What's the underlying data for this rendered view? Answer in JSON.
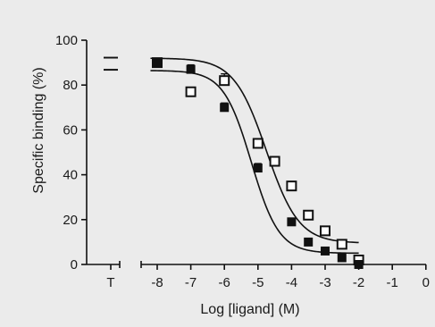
{
  "chart_data": {
    "type": "scatter",
    "title": "",
    "xlabel": "Log [ligand] (M)",
    "ylabel": "Specific binding (%)",
    "xlim": [
      -8.5,
      0
    ],
    "ylim": [
      0,
      100
    ],
    "x_ticks": [
      -8,
      -7,
      -6,
      -5,
      -4,
      -3,
      -2,
      -1,
      0
    ],
    "x_tick_labels": [
      "-8",
      "-7",
      "-6",
      "-5",
      "-4",
      "-3",
      "-2",
      "-1",
      "0"
    ],
    "y_ticks": [
      0,
      20,
      40,
      60,
      80,
      100
    ],
    "y_tick_labels": [
      "0",
      "20",
      "40",
      "60",
      "80",
      "100"
    ],
    "total_category_label": "T",
    "grid": false,
    "legend": "none",
    "series": [
      {
        "marker": "open-square",
        "color": "#111111",
        "total_range": [
          86.8,
          92.2
        ],
        "points": [
          {
            "x": -8.0,
            "y": 90,
            "err": 1
          },
          {
            "x": -7.0,
            "y": 77,
            "err": 2
          },
          {
            "x": -6.0,
            "y": 82,
            "err": 3
          },
          {
            "x": -5.0,
            "y": 54,
            "err": 2
          },
          {
            "x": -4.5,
            "y": 46,
            "err": 2
          },
          {
            "x": -4.0,
            "y": 35,
            "err": 2
          },
          {
            "x": -3.5,
            "y": 22,
            "err": 2
          },
          {
            "x": -3.0,
            "y": 15,
            "err": 1
          },
          {
            "x": -2.5,
            "y": 9,
            "err": 1
          },
          {
            "x": -2.0,
            "y": 2,
            "err": 1
          }
        ],
        "fit": {
          "top": 92,
          "bottom": 9.5,
          "log_ic50": -4.75,
          "hill": 0.9
        }
      },
      {
        "marker": "filled-square",
        "color": "#111111",
        "total_range": [
          86.8,
          92.2
        ],
        "points": [
          {
            "x": -8.0,
            "y": 90,
            "err": 1
          },
          {
            "x": -7.0,
            "y": 87,
            "err": 2
          },
          {
            "x": -6.0,
            "y": 70,
            "err": 2
          },
          {
            "x": -5.0,
            "y": 43,
            "err": 2
          },
          {
            "x": -4.0,
            "y": 19,
            "err": 1
          },
          {
            "x": -3.5,
            "y": 10,
            "err": 1
          },
          {
            "x": -3.0,
            "y": 6,
            "err": 1
          },
          {
            "x": -2.5,
            "y": 3,
            "err": 1
          },
          {
            "x": -2.0,
            "y": 0,
            "err": 1
          }
        ],
        "fit": {
          "top": 86.5,
          "bottom": 5,
          "log_ic50": -5.2,
          "hill": 1.05
        }
      }
    ]
  }
}
